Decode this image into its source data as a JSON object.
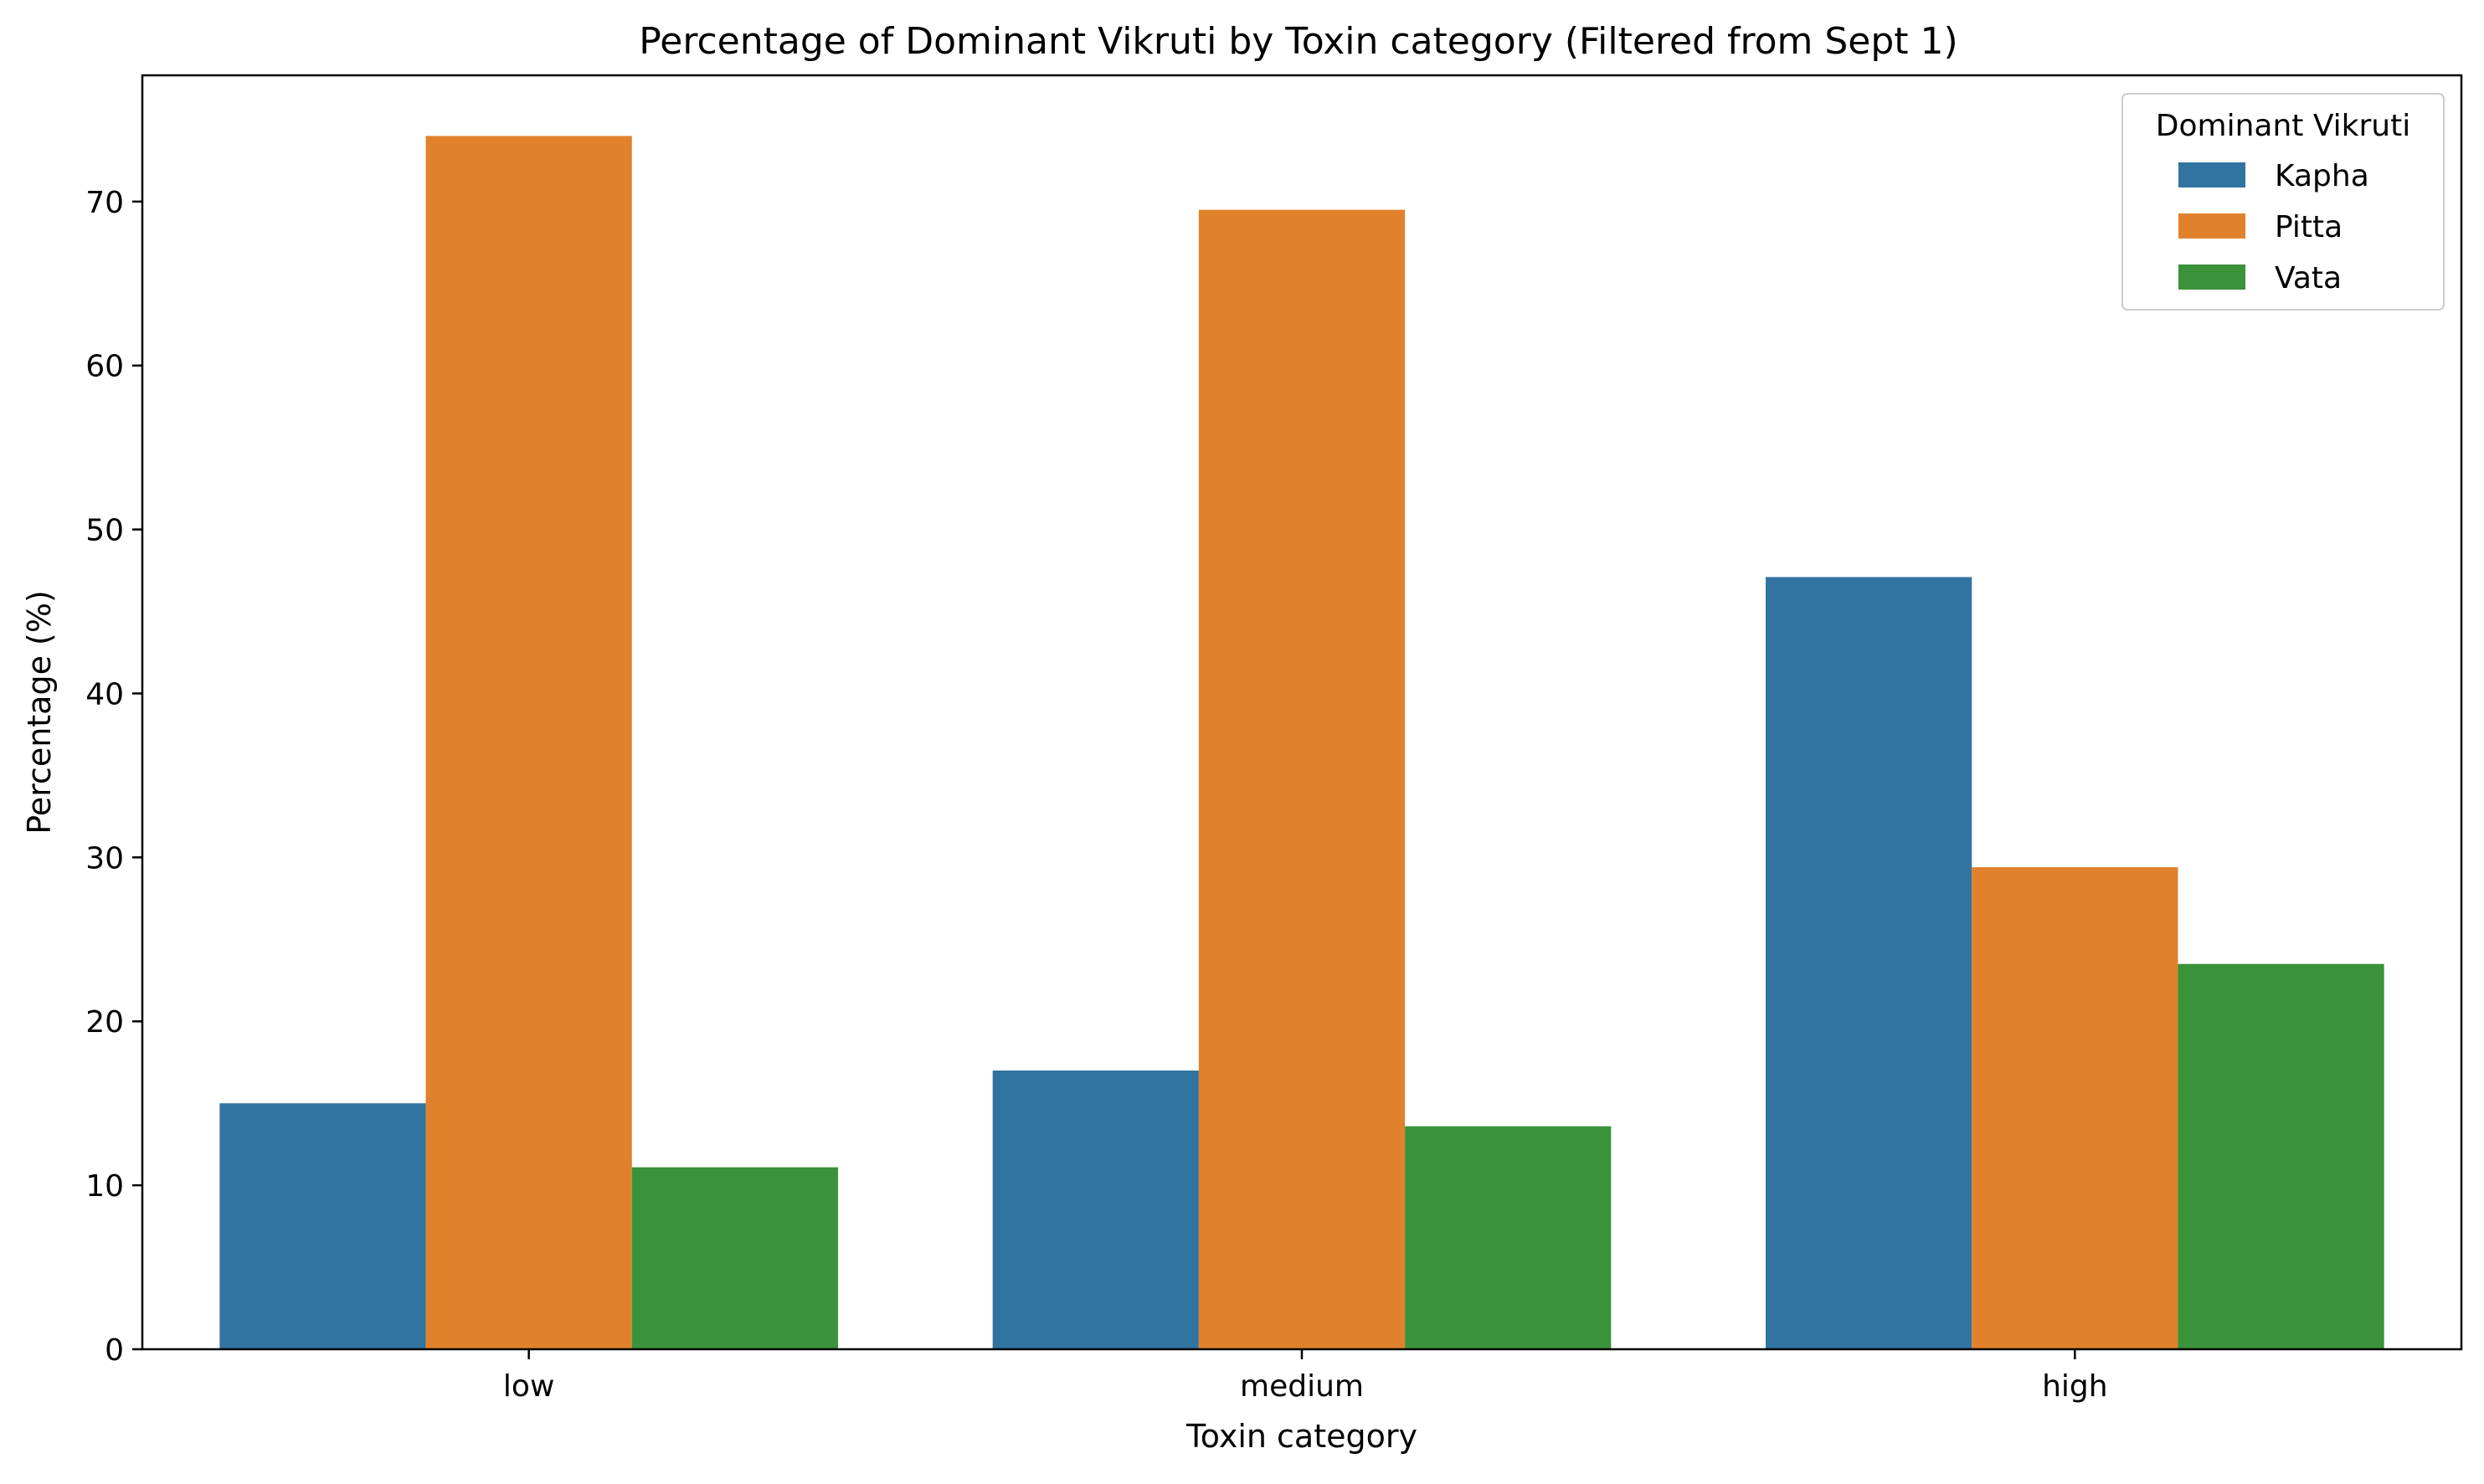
{
  "chart_data": {
    "type": "bar",
    "title": "Percentage of Dominant Vikruti by Toxin category (Filtered from Sept 1)",
    "xlabel": "Toxin category",
    "ylabel": "Percentage (%)",
    "categories": [
      "low",
      "medium",
      "high"
    ],
    "series": [
      {
        "name": "Kapha",
        "color": "#3274a1",
        "values": [
          15.0,
          17.0,
          47.1
        ]
      },
      {
        "name": "Pitta",
        "color": "#e1812c",
        "values": [
          74.0,
          69.5,
          29.4
        ]
      },
      {
        "name": "Vata",
        "color": "#3a923a",
        "values": [
          11.1,
          13.6,
          23.5
        ]
      }
    ],
    "ylim": [
      0,
      77.7
    ],
    "yticks": [
      0,
      10,
      20,
      30,
      40,
      50,
      60,
      70
    ],
    "legend": {
      "title": "Dominant Vikruti",
      "position": "top-right"
    },
    "grid": false
  }
}
